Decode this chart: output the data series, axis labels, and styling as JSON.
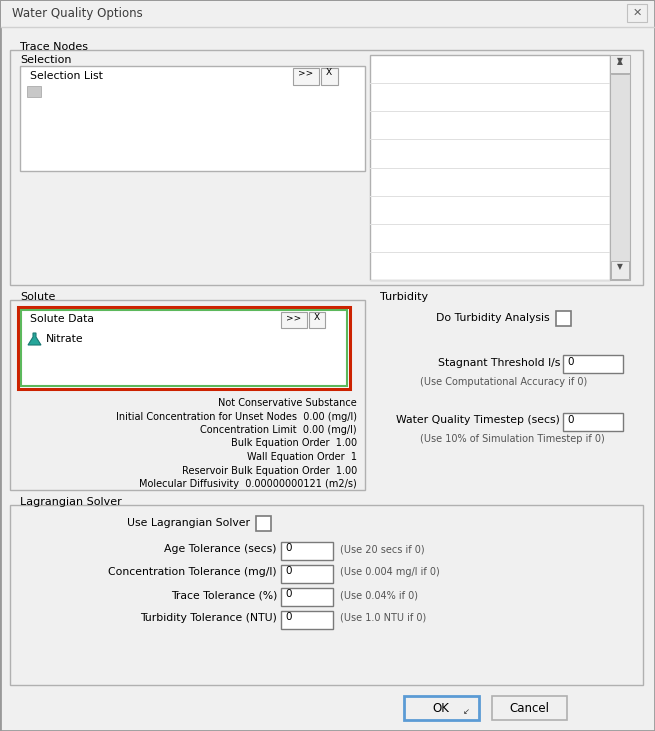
{
  "title": "Water Quality Options",
  "bg_color": "#f0f0f0",
  "white": "#ffffff",
  "section_labels": {
    "trace_nodes": "Trace Nodes",
    "selection": "Selection",
    "solute": "Solute",
    "turbidity": "Turbidity",
    "lagrangian": "Lagrangian Solver"
  },
  "solute_data_label": "Solute Data",
  "nitrate_label": "Nitrate",
  "do_turbidity": "Do Turbidity Analysis",
  "stagnant_label": "Stagnant Threshold l/s",
  "stagnant_hint": "(Use Computational Accuracy if 0)",
  "wq_timestep_label": "Water Quality Timestep (secs)",
  "wq_timestep_hint": "(Use 10% of Simulation Timestep if 0)",
  "use_lagrangian": "Use Lagrangian Solver",
  "age_tol": "Age Tolerance (secs)",
  "age_hint": "(Use 20 secs if 0)",
  "conc_tol": "Concentration Tolerance (mg/l)",
  "conc_hint": "(Use 0.004 mg/l if 0)",
  "trace_tol": "Trace Tolerance (%)",
  "trace_hint": "(Use 0.04% if 0)",
  "turb_tol": "Turbidity Tolerance (NTU)",
  "turb_hint": "(Use 1.0 NTU if 0)",
  "not_conservative": "Not Conservative Substance",
  "init_conc": "Initial Concentration for Unset Nodes  0.00 (mg/l)",
  "conc_limit": "Concentration Limit  0.00 (mg/l)",
  "bulk_eq": "Bulk Equation Order  1.00",
  "wall_eq": "Wall Equation Order  1",
  "res_bulk": "Reservoir Bulk Equation Order  1.00",
  "mol_diff": "Molecular Diffusivity  0.00000000121 (m2/s)",
  "ok_label": "OK",
  "cancel_label": "Cancel",
  "selection_list": "Selection List",
  "title_bar_color": "#f0f0f0",
  "groupbox_border": "#b0b0b0",
  "input_border": "#7a7a7a",
  "hint_color": "#555555",
  "red_border": "#cc2200",
  "green_border": "#5cb85c",
  "blue_btn": "#5b9bd5",
  "scrollbar_bg": "#d0d0d0",
  "scrollbar_thumb": "#e8e8e8"
}
